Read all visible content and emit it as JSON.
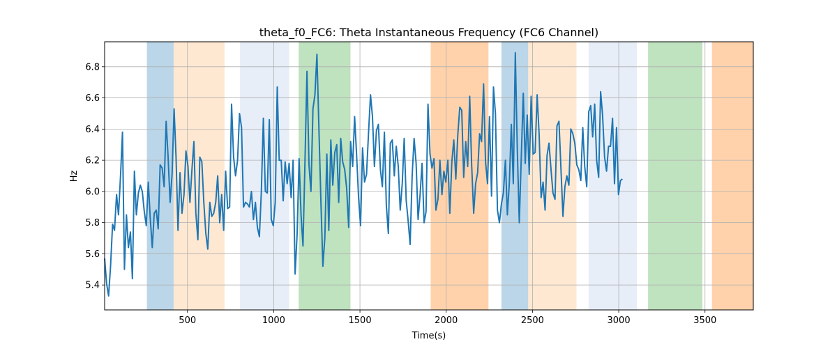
{
  "chart_data": {
    "type": "line",
    "title": "theta_f0_FC6: Theta Instantaneous Frequency (FC6 Channel)",
    "xlabel": "Time(s)",
    "ylabel": "Hz",
    "xlim": [
      20,
      3780
    ],
    "ylim": [
      5.24,
      6.96
    ],
    "x_ticks": [
      500,
      1000,
      1500,
      2000,
      2500,
      3000,
      3500
    ],
    "y_ticks": [
      5.4,
      5.6,
      5.8,
      6.0,
      6.2,
      6.4,
      6.6,
      6.8
    ],
    "y_tick_labels": [
      "5.4",
      "5.6",
      "5.8",
      "6.0",
      "6.2",
      "6.4",
      "6.6",
      "6.8"
    ],
    "grid": true,
    "line_color": "#1f77b4",
    "bands": [
      {
        "start": 265,
        "end": 420,
        "color": "#1f77b4",
        "opacity": 0.3
      },
      {
        "start": 420,
        "end": 715,
        "color": "#ffb36b",
        "opacity": 0.3
      },
      {
        "start": 805,
        "end": 1090,
        "color": "#aec7e8",
        "opacity": 0.3
      },
      {
        "start": 1145,
        "end": 1445,
        "color": "#2ca02c",
        "opacity": 0.3
      },
      {
        "start": 1910,
        "end": 2245,
        "color": "#ff7f0e",
        "opacity": 0.35
      },
      {
        "start": 2320,
        "end": 2475,
        "color": "#1f77b4",
        "opacity": 0.3
      },
      {
        "start": 2475,
        "end": 2755,
        "color": "#ffb36b",
        "opacity": 0.3
      },
      {
        "start": 2825,
        "end": 3105,
        "color": "#aec7e8",
        "opacity": 0.3
      },
      {
        "start": 3170,
        "end": 3485,
        "color": "#2ca02c",
        "opacity": 0.3
      },
      {
        "start": 3540,
        "end": 3780,
        "color": "#ff7f0e",
        "opacity": 0.35
      }
    ],
    "series": [
      {
        "x_start": 20,
        "x_step": 11.5,
        "values": [
          5.57,
          5.41,
          5.33,
          5.52,
          5.79,
          5.75,
          5.98,
          5.85,
          6.1,
          6.38,
          5.5,
          5.85,
          5.64,
          5.74,
          5.44,
          6.13,
          5.85,
          5.99,
          6.04,
          6.0,
          5.87,
          5.78,
          6.06,
          5.83,
          5.64,
          5.86,
          5.88,
          5.76,
          6.17,
          6.15,
          6.03,
          6.45,
          6.22,
          5.93,
          6.11,
          6.53,
          6.22,
          5.75,
          6.12,
          5.86,
          5.98,
          6.26,
          6.16,
          5.93,
          6.14,
          6.32,
          5.86,
          5.69,
          6.22,
          6.19,
          5.93,
          5.73,
          5.63,
          5.93,
          5.84,
          5.86,
          5.93,
          6.1,
          5.8,
          5.98,
          5.75,
          6.13,
          5.89,
          5.9,
          6.56,
          6.22,
          6.1,
          6.2,
          6.5,
          6.41,
          5.9,
          5.93,
          5.92,
          5.9,
          6.0,
          5.82,
          5.93,
          5.77,
          5.71,
          6.0,
          6.47,
          6.0,
          5.99,
          6.46,
          5.82,
          5.78,
          5.93,
          6.67,
          6.2,
          6.2,
          5.94,
          6.19,
          6.05,
          6.18,
          5.96,
          6.2,
          5.47,
          5.72,
          6.21,
          5.85,
          5.65,
          6.2,
          6.77,
          6.17,
          6.0,
          6.53,
          6.62,
          6.88,
          6.41,
          5.95,
          5.52,
          5.7,
          6.24,
          5.75,
          6.33,
          6.04,
          6.25,
          6.3,
          5.93,
          6.34,
          6.19,
          6.14,
          6.02,
          5.77,
          6.32,
          6.16,
          6.48,
          6.24,
          5.96,
          5.78,
          6.28,
          6.06,
          6.11,
          6.37,
          6.62,
          6.48,
          6.16,
          6.39,
          6.43,
          6.14,
          6.03,
          6.38,
          5.91,
          5.73,
          6.31,
          6.33,
          6.1,
          6.29,
          6.16,
          5.88,
          6.05,
          6.34,
          5.94,
          5.81,
          5.66,
          6.1,
          6.34,
          6.18,
          5.82,
          5.98,
          6.18,
          5.8,
          5.87,
          6.56,
          6.24,
          6.15,
          6.21,
          5.88,
          5.95,
          6.2,
          5.98,
          6.13,
          6.06,
          6.2,
          5.86,
          6.19,
          6.33,
          6.08,
          6.36,
          6.54,
          6.52,
          6.09,
          6.32,
          6.16,
          6.61,
          6.17,
          5.86,
          6.05,
          6.12,
          6.37,
          6.32,
          6.69,
          6.19,
          6.05,
          6.48,
          5.97,
          6.67,
          6.5,
          5.88,
          5.8,
          5.92,
          5.99,
          6.2,
          5.85,
          6.06,
          6.43,
          6.05,
          6.89,
          6.28,
          5.8,
          6.21,
          6.63,
          6.18,
          6.49,
          6.11,
          6.61,
          6.24,
          6.25,
          6.62,
          6.37,
          5.96,
          6.06,
          5.88,
          6.23,
          6.31,
          6.14,
          5.99,
          5.95,
          6.42,
          6.45,
          6.15,
          5.84,
          6.03,
          6.1,
          6.04,
          6.4,
          6.37,
          6.31,
          6.17,
          6.14,
          6.07,
          6.41,
          6.16,
          6.03,
          6.51,
          6.55,
          6.35,
          6.56,
          6.2,
          6.09,
          6.64,
          6.49,
          6.22,
          6.13,
          6.29,
          6.29,
          6.47,
          6.05,
          6.41,
          5.98,
          6.07,
          6.08
        ]
      }
    ]
  }
}
